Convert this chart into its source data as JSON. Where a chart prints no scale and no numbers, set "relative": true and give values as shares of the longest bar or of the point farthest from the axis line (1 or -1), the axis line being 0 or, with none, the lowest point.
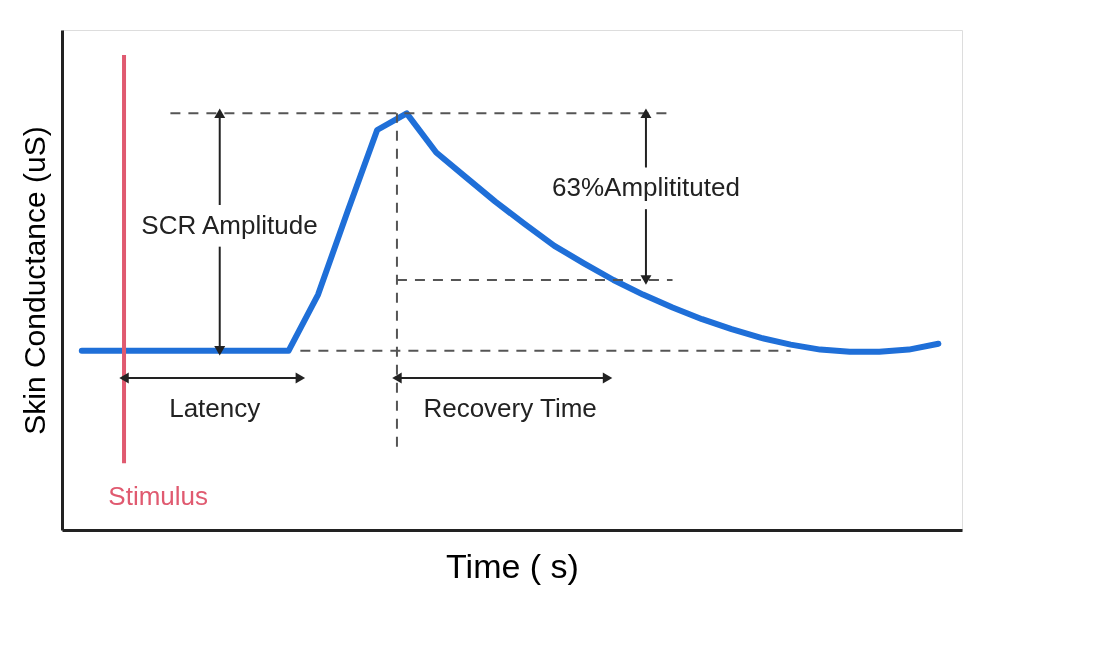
{
  "chart_data": {
    "type": "line",
    "relative": true,
    "categories": [
      null,
      null,
      null,
      null,
      null,
      null,
      null,
      null,
      null,
      null,
      null,
      null,
      null,
      null,
      null,
      null,
      null,
      null,
      null,
      null,
      null,
      null,
      null,
      null,
      null,
      null,
      null,
      null,
      null,
      null
    ],
    "series": [
      {
        "color": "#1f6fd8",
        "values": [
          0.43,
          0.43,
          0.43,
          0.43,
          0.43,
          0.43,
          0.43,
          0.43,
          0.565,
          0.765,
          0.96,
          1.0,
          0.906,
          0.847,
          0.788,
          0.734,
          0.682,
          0.64,
          0.6,
          0.565,
          0.534,
          0.506,
          0.482,
          0.461,
          0.445,
          0.433,
          0.428,
          0.428,
          0.433,
          0.447
        ]
      }
    ],
    "xlabel": "Time ( s)",
    "ylabel": "Skin Conductance (uS)",
    "annotations": [
      "SCR Amplitude",
      "63%Amplitituted",
      "Latency",
      "Recovery Time",
      "Stimulus"
    ],
    "ref_lines": [
      {
        "axis": "y",
        "value": 1.0,
        "color": "#555555",
        "line_style": "dashed"
      },
      {
        "axis": "y",
        "value": 0.43,
        "color": "#555555",
        "line_style": "dashed"
      },
      {
        "axis": "y",
        "value": 0.6,
        "color": "#555555",
        "line_style": "dashed"
      }
    ],
    "line_style": "solid",
    "marker": "none",
    "grid": false,
    "tick_labels": false
  }
}
